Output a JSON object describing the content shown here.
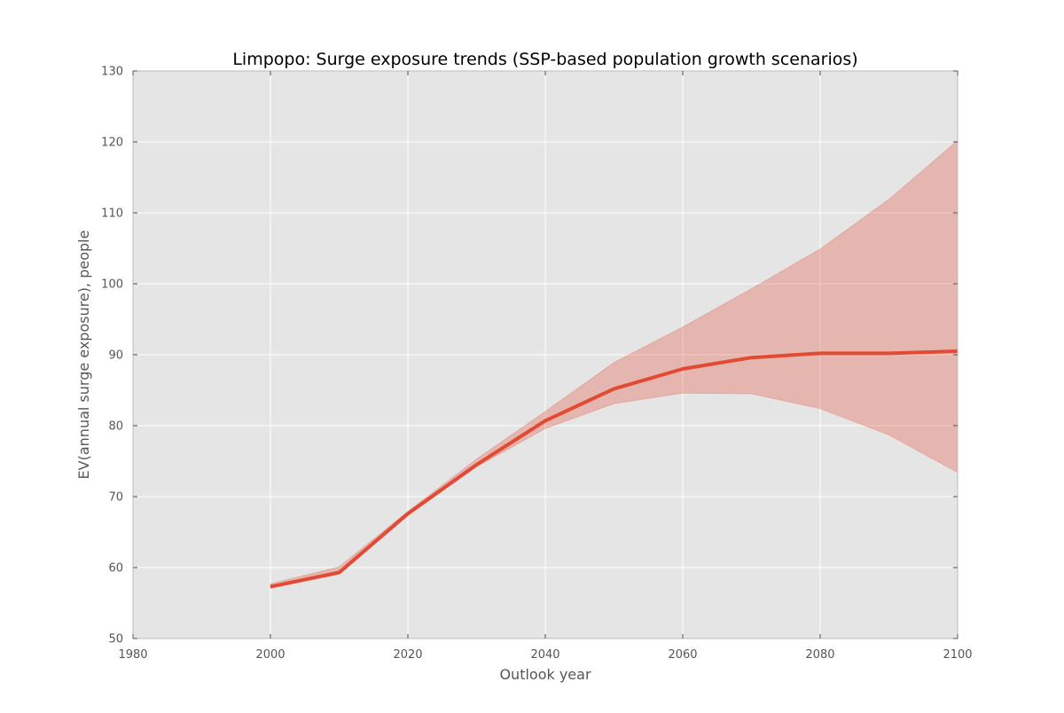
{
  "chart_data": {
    "type": "line",
    "title": "Limpopo: Surge exposure trends (SSP-based population growth scenarios)",
    "xlabel": "Outlook year",
    "ylabel": "EV(annual surge exposure), people",
    "xlim": [
      1980,
      2100
    ],
    "ylim": [
      50,
      130
    ],
    "xticks": [
      1980,
      2000,
      2020,
      2040,
      2060,
      2080,
      2100
    ],
    "yticks": [
      50,
      60,
      70,
      80,
      90,
      100,
      110,
      120,
      130
    ],
    "grid": true,
    "x": [
      2000,
      2010,
      2020,
      2030,
      2040,
      2050,
      2060,
      2070,
      2080,
      2090,
      2100
    ],
    "series": [
      {
        "values": [
          57.3,
          59.3,
          67.6,
          74.5,
          80.7,
          85.2,
          88.0,
          89.6,
          90.2,
          90.2,
          90.5
        ]
      }
    ],
    "band": {
      "upper": [
        57.7,
        60.1,
        67.9,
        75.3,
        82.0,
        88.9,
        93.9,
        99.3,
        104.9,
        111.9,
        120.2
      ],
      "lower": [
        57.1,
        59.1,
        67.4,
        74.2,
        79.6,
        83.1,
        84.6,
        84.5,
        82.4,
        78.7,
        73.4
      ]
    },
    "colors": {
      "line": "#E24A33",
      "band": "#E24A33",
      "plot_background": "#E5E5E5",
      "grid": "#FFFFFF",
      "tick_text": "#555555"
    }
  }
}
